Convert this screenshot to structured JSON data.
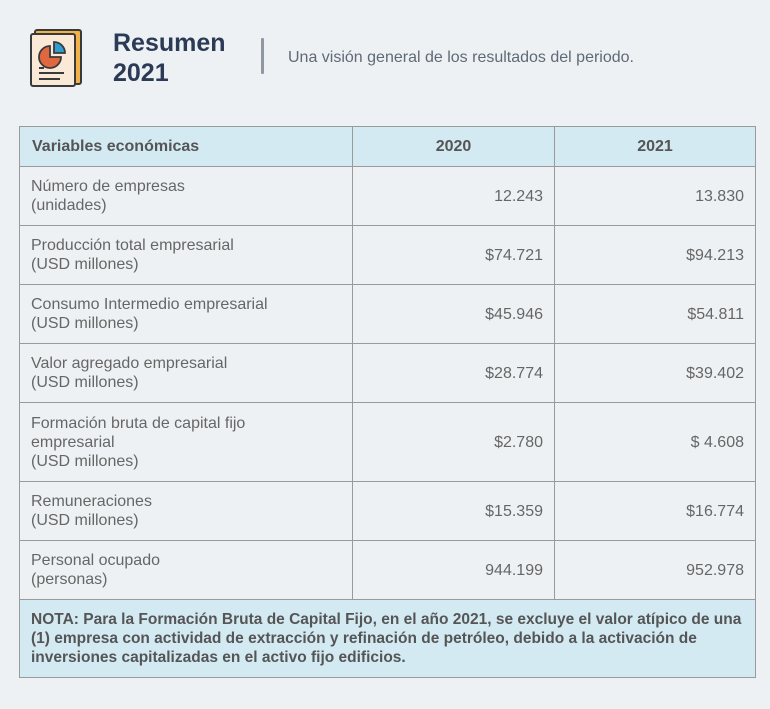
{
  "header": {
    "title_line1": "Resumen",
    "title_line2": "2021",
    "subtitle": "Una visión general de los resultados del periodo.",
    "icon": "report-chart-icon"
  },
  "table": {
    "headers": [
      "Variables económicas",
      "2020",
      "2021"
    ],
    "rows": [
      {
        "label_line1": "Número de empresas",
        "label_line2": "(unidades)",
        "label_line3": "",
        "v2020": "12.243",
        "v2021": "13.830"
      },
      {
        "label_line1": "Producción total empresarial",
        "label_line2": "(USD millones)",
        "label_line3": "",
        "v2020": "$74.721",
        "v2021": "$94.213"
      },
      {
        "label_line1": "Consumo Intermedio empresarial",
        "label_line2": "(USD millones)",
        "label_line3": "",
        "v2020": "$45.946",
        "v2021": "$54.811"
      },
      {
        "label_line1": "Valor agregado empresarial",
        "label_line2": "(USD millones)",
        "label_line3": "",
        "v2020": "$28.774",
        "v2021": "$39.402"
      },
      {
        "label_line1": "Formación bruta de capital fijo",
        "label_line2": "empresarial",
        "label_line3": "(USD millones)",
        "v2020": "$2.780",
        "v2021": "$ 4.608"
      },
      {
        "label_line1": "Remuneraciones",
        "label_line2": "(USD millones)",
        "label_line3": "",
        "v2020": "$15.359",
        "v2021": "$16.774"
      },
      {
        "label_line1": "Personal ocupado",
        "label_line2": "(personas)",
        "label_line3": "",
        "v2020": "944.199",
        "v2021": "952.978"
      }
    ],
    "note": "NOTA: Para la Formación Bruta de Capital Fijo, en el año 2021, se excluye el valor atípico de una (1) empresa con actividad de extracción y refinación de petróleo, debido a la activación de inversiones capitalizadas en el activo fijo edificios."
  },
  "colors": {
    "title": "#2b3a55",
    "header_bg": "#d3eaf3",
    "page_bg": "#eef1f4",
    "icon_orange": "#e0683f",
    "icon_blue": "#2f9fd2"
  }
}
